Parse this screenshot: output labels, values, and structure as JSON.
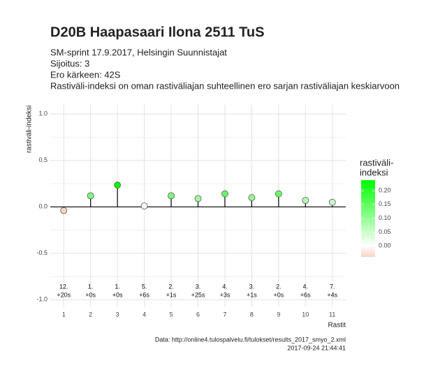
{
  "chart_data": {
    "type": "lollipop",
    "title": "D20B Haapasaari Ilona 2511 TuS",
    "subtitle": [
      "SM-sprint 17.9.2017, Helsingin Suunnistajat",
      "Sijoitus: 3",
      "Ero kärkeen: 42S",
      "Rastiväli-indeksi on oman rastiväliajan suhteellinen ero sarjan rastiväliajan keskiarvoon"
    ],
    "caption": [
      "Data: http://online4.tulospalvelu.fi/tulokset/results_2017_smyo_2.xml",
      "2017-09-24 21:44:41"
    ],
    "xlabel": "Rastit",
    "ylabel": "rastiväli-indeksi",
    "x": [
      1,
      2,
      3,
      4,
      5,
      6,
      7,
      8,
      9,
      10,
      11
    ],
    "values": [
      -0.04,
      0.12,
      0.235,
      0.01,
      0.12,
      0.09,
      0.14,
      0.1,
      0.14,
      0.07,
      0.05
    ],
    "ranks": [
      "12.",
      "1.",
      "1.",
      "5.",
      "2.",
      "3.",
      "4.",
      "3.",
      "2.",
      "4.",
      "7."
    ],
    "diffs": [
      "+20s",
      "+0s",
      "+0s",
      "+6s",
      "+1s",
      "+25s",
      "+3s",
      "+1s",
      "+0s",
      "+6s",
      "+4s"
    ],
    "xlim": [
      0.5,
      11.5
    ],
    "xticks": [
      1,
      2,
      3,
      4,
      5,
      6,
      7,
      8,
      9,
      10,
      11
    ],
    "ylim": [
      -1.08,
      1.1
    ],
    "yticks": [
      {
        "value": -1,
        "label": "-1.0"
      },
      {
        "value": -0.5,
        "label": "-0.5"
      },
      {
        "value": 0,
        "label": "0.0"
      },
      {
        "value": 0.5,
        "label": "0.5"
      },
      {
        "value": 1,
        "label": "1.0"
      }
    ],
    "grid": true,
    "legend_title": [
      "rastiväli-",
      "indeksi"
    ],
    "colorbar_lim": [
      -0.04,
      0.238
    ],
    "colorbar_ticks": [
      {
        "value": 0,
        "label": "0.00"
      },
      {
        "value": 0.05,
        "label": "0.05"
      },
      {
        "value": 0.1,
        "label": "0.10"
      },
      {
        "value": 0.15,
        "label": "0.15"
      },
      {
        "value": 0.2,
        "label": "0.20"
      }
    ],
    "colorscale": [
      "#fbd3c5",
      "#ffffff",
      "#00ff00"
    ]
  }
}
